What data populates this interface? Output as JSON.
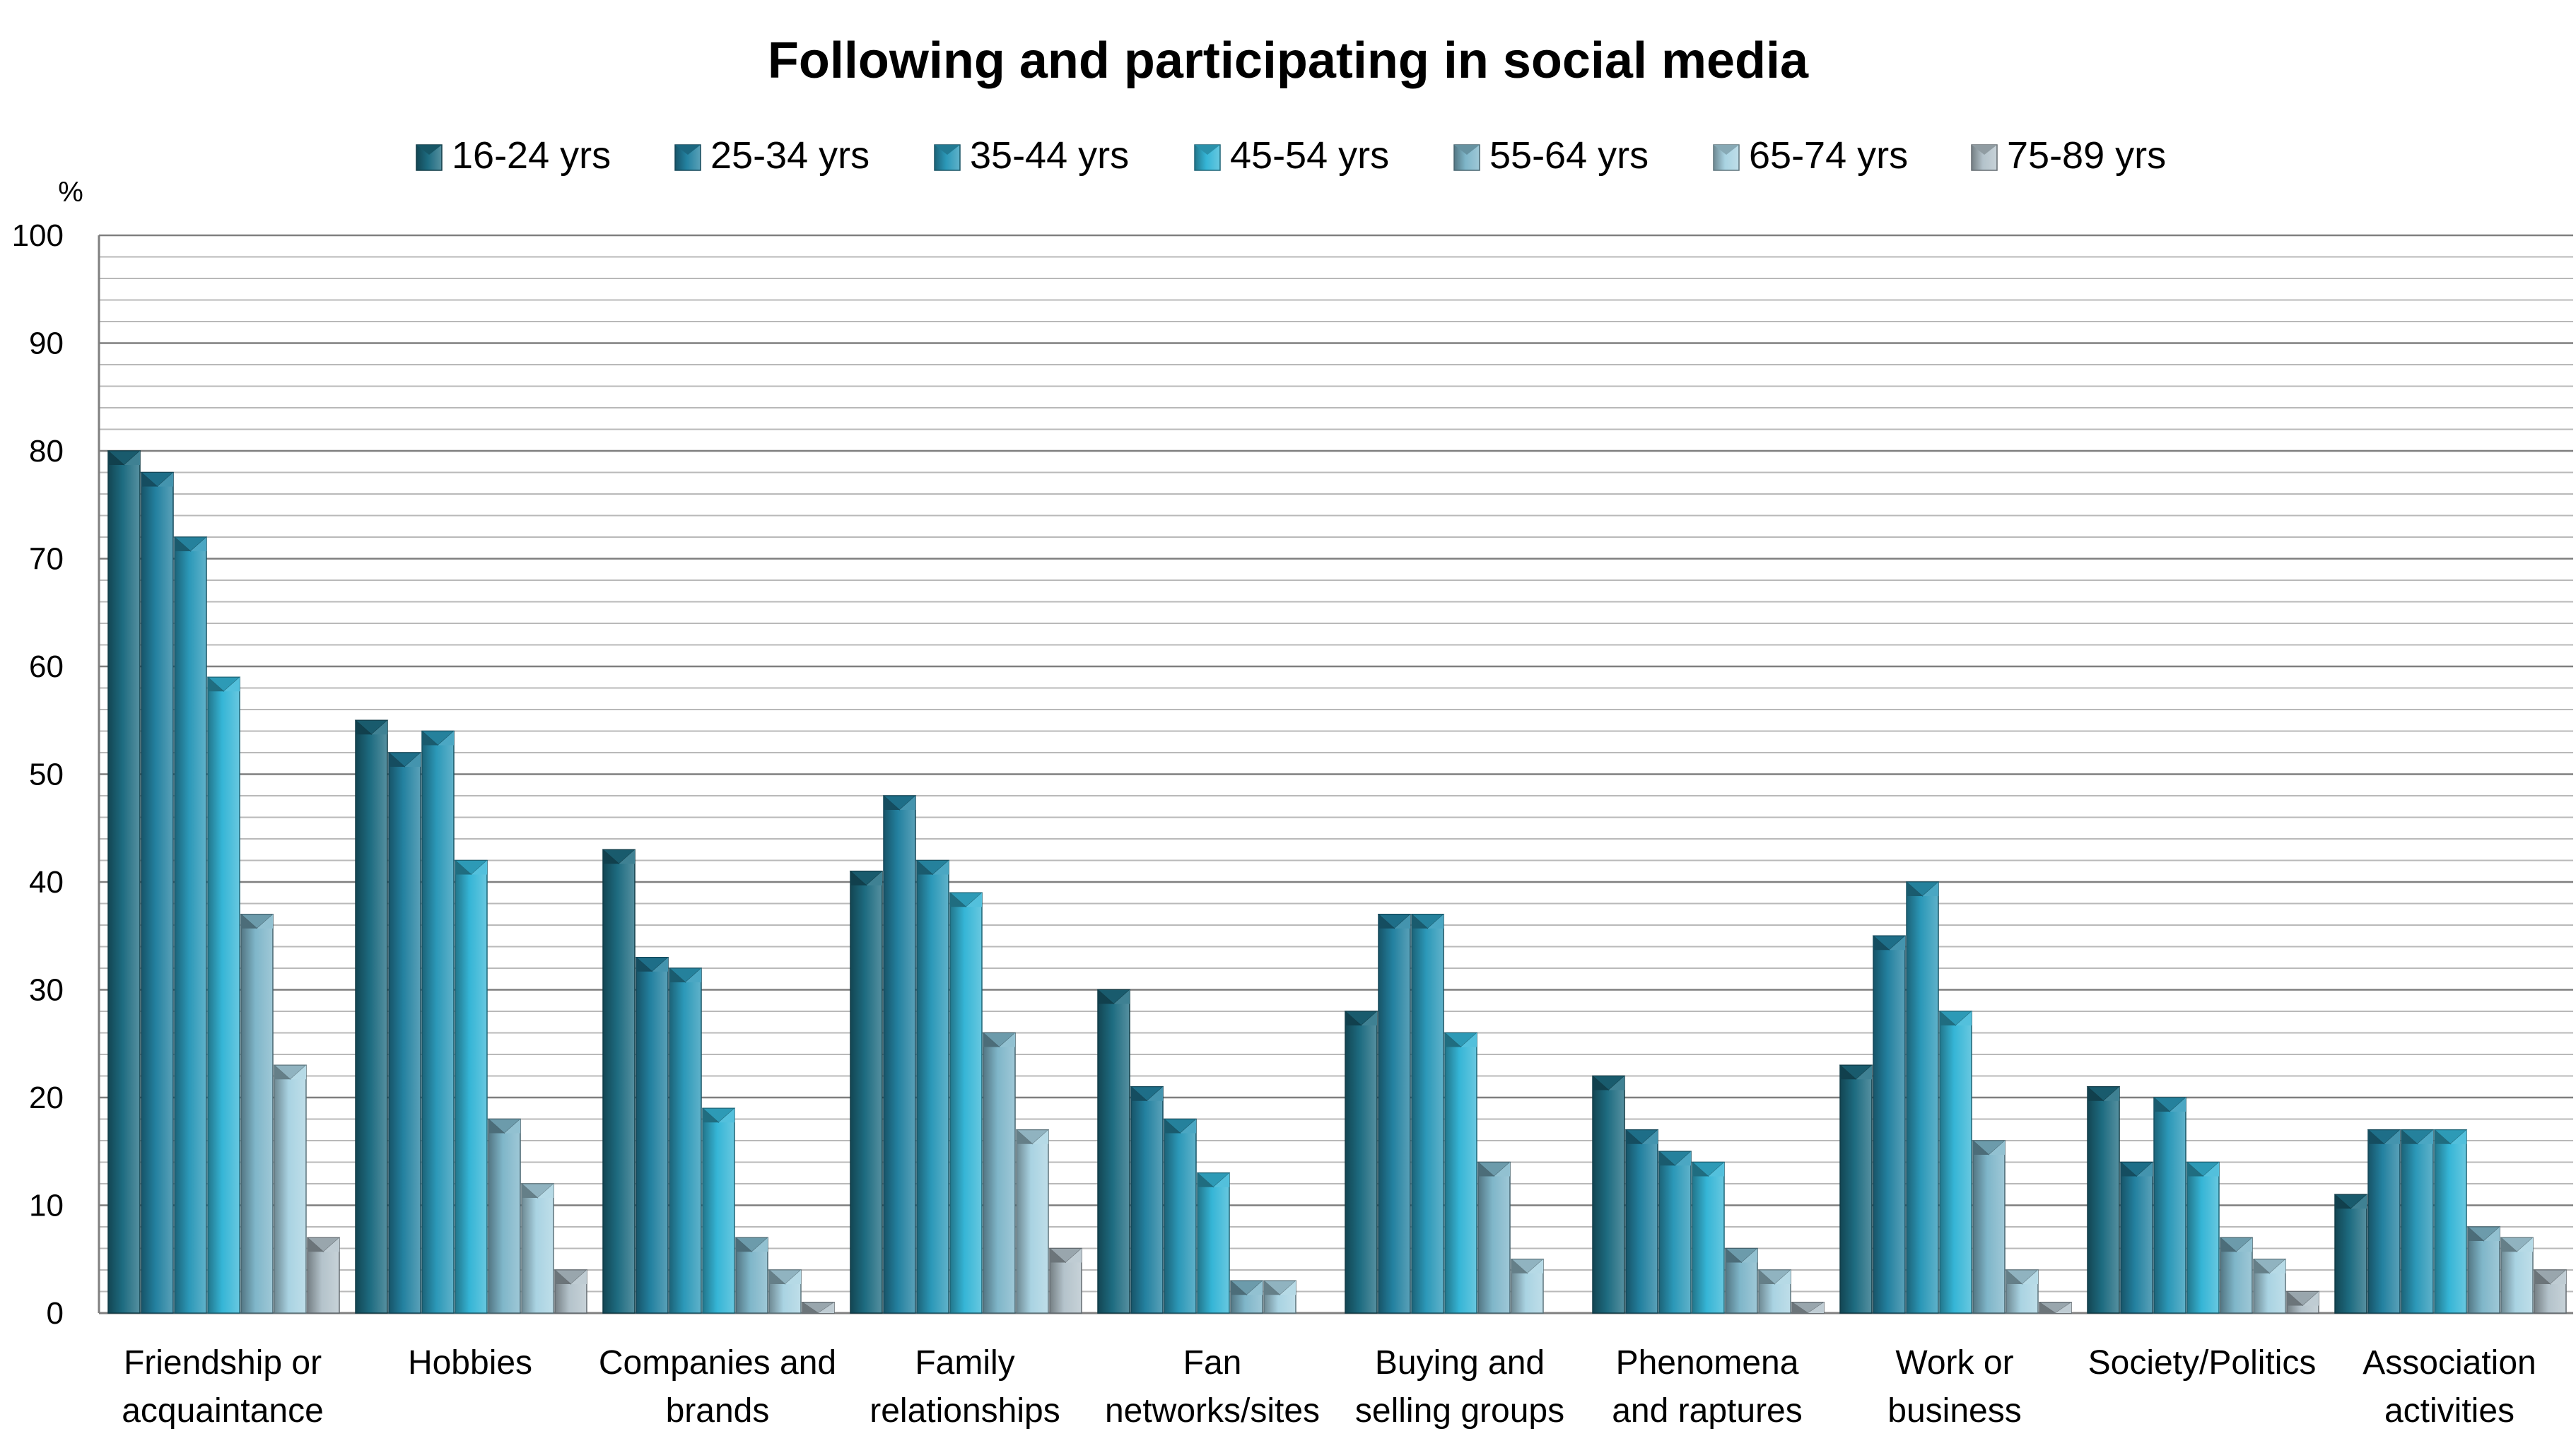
{
  "chart_data": {
    "type": "bar",
    "title": "Following and participating in social media",
    "ylabel": "%",
    "xlabel": "",
    "ylim": [
      0,
      100
    ],
    "yticks": [
      0,
      10,
      20,
      30,
      40,
      50,
      60,
      70,
      80,
      90,
      100
    ],
    "grid": true,
    "legend_position": "top",
    "categories": [
      [
        "Friendship or",
        "acquaintance"
      ],
      [
        "Hobbies"
      ],
      [
        "Companies and",
        "brands"
      ],
      [
        "Family",
        "relationships"
      ],
      [
        "Fan",
        "networks/sites"
      ],
      [
        "Buying and",
        "selling groups"
      ],
      [
        "Phenomena",
        "and raptures"
      ],
      [
        "Work or",
        "business"
      ],
      [
        "Society/Politics"
      ],
      [
        "Association",
        "activities"
      ]
    ],
    "series": [
      {
        "name": "16-24 yrs",
        "color": "#1d6b80",
        "values": [
          80,
          55,
          43,
          41,
          30,
          28,
          22,
          23,
          21,
          11
        ]
      },
      {
        "name": "25-34 yrs",
        "color": "#2381a0",
        "values": [
          78,
          52,
          33,
          48,
          21,
          37,
          17,
          35,
          14,
          17
        ]
      },
      {
        "name": "35-44 yrs",
        "color": "#2b98b8",
        "values": [
          72,
          54,
          32,
          42,
          18,
          37,
          15,
          40,
          20,
          17
        ]
      },
      {
        "name": "45-54 yrs",
        "color": "#35b5d6",
        "values": [
          59,
          42,
          19,
          39,
          13,
          26,
          14,
          28,
          14,
          17
        ]
      },
      {
        "name": "55-64 yrs",
        "color": "#7fb6c9",
        "values": [
          37,
          18,
          7,
          26,
          3,
          14,
          6,
          16,
          7,
          8
        ]
      },
      {
        "name": "65-74 yrs",
        "color": "#a9d3e2",
        "values": [
          23,
          12,
          4,
          17,
          3,
          5,
          4,
          4,
          5,
          7
        ]
      },
      {
        "name": "75-89 yrs",
        "color": "#b4c3cb",
        "values": [
          7,
          4,
          1,
          6,
          null,
          null,
          1,
          1,
          2,
          4
        ]
      }
    ]
  }
}
